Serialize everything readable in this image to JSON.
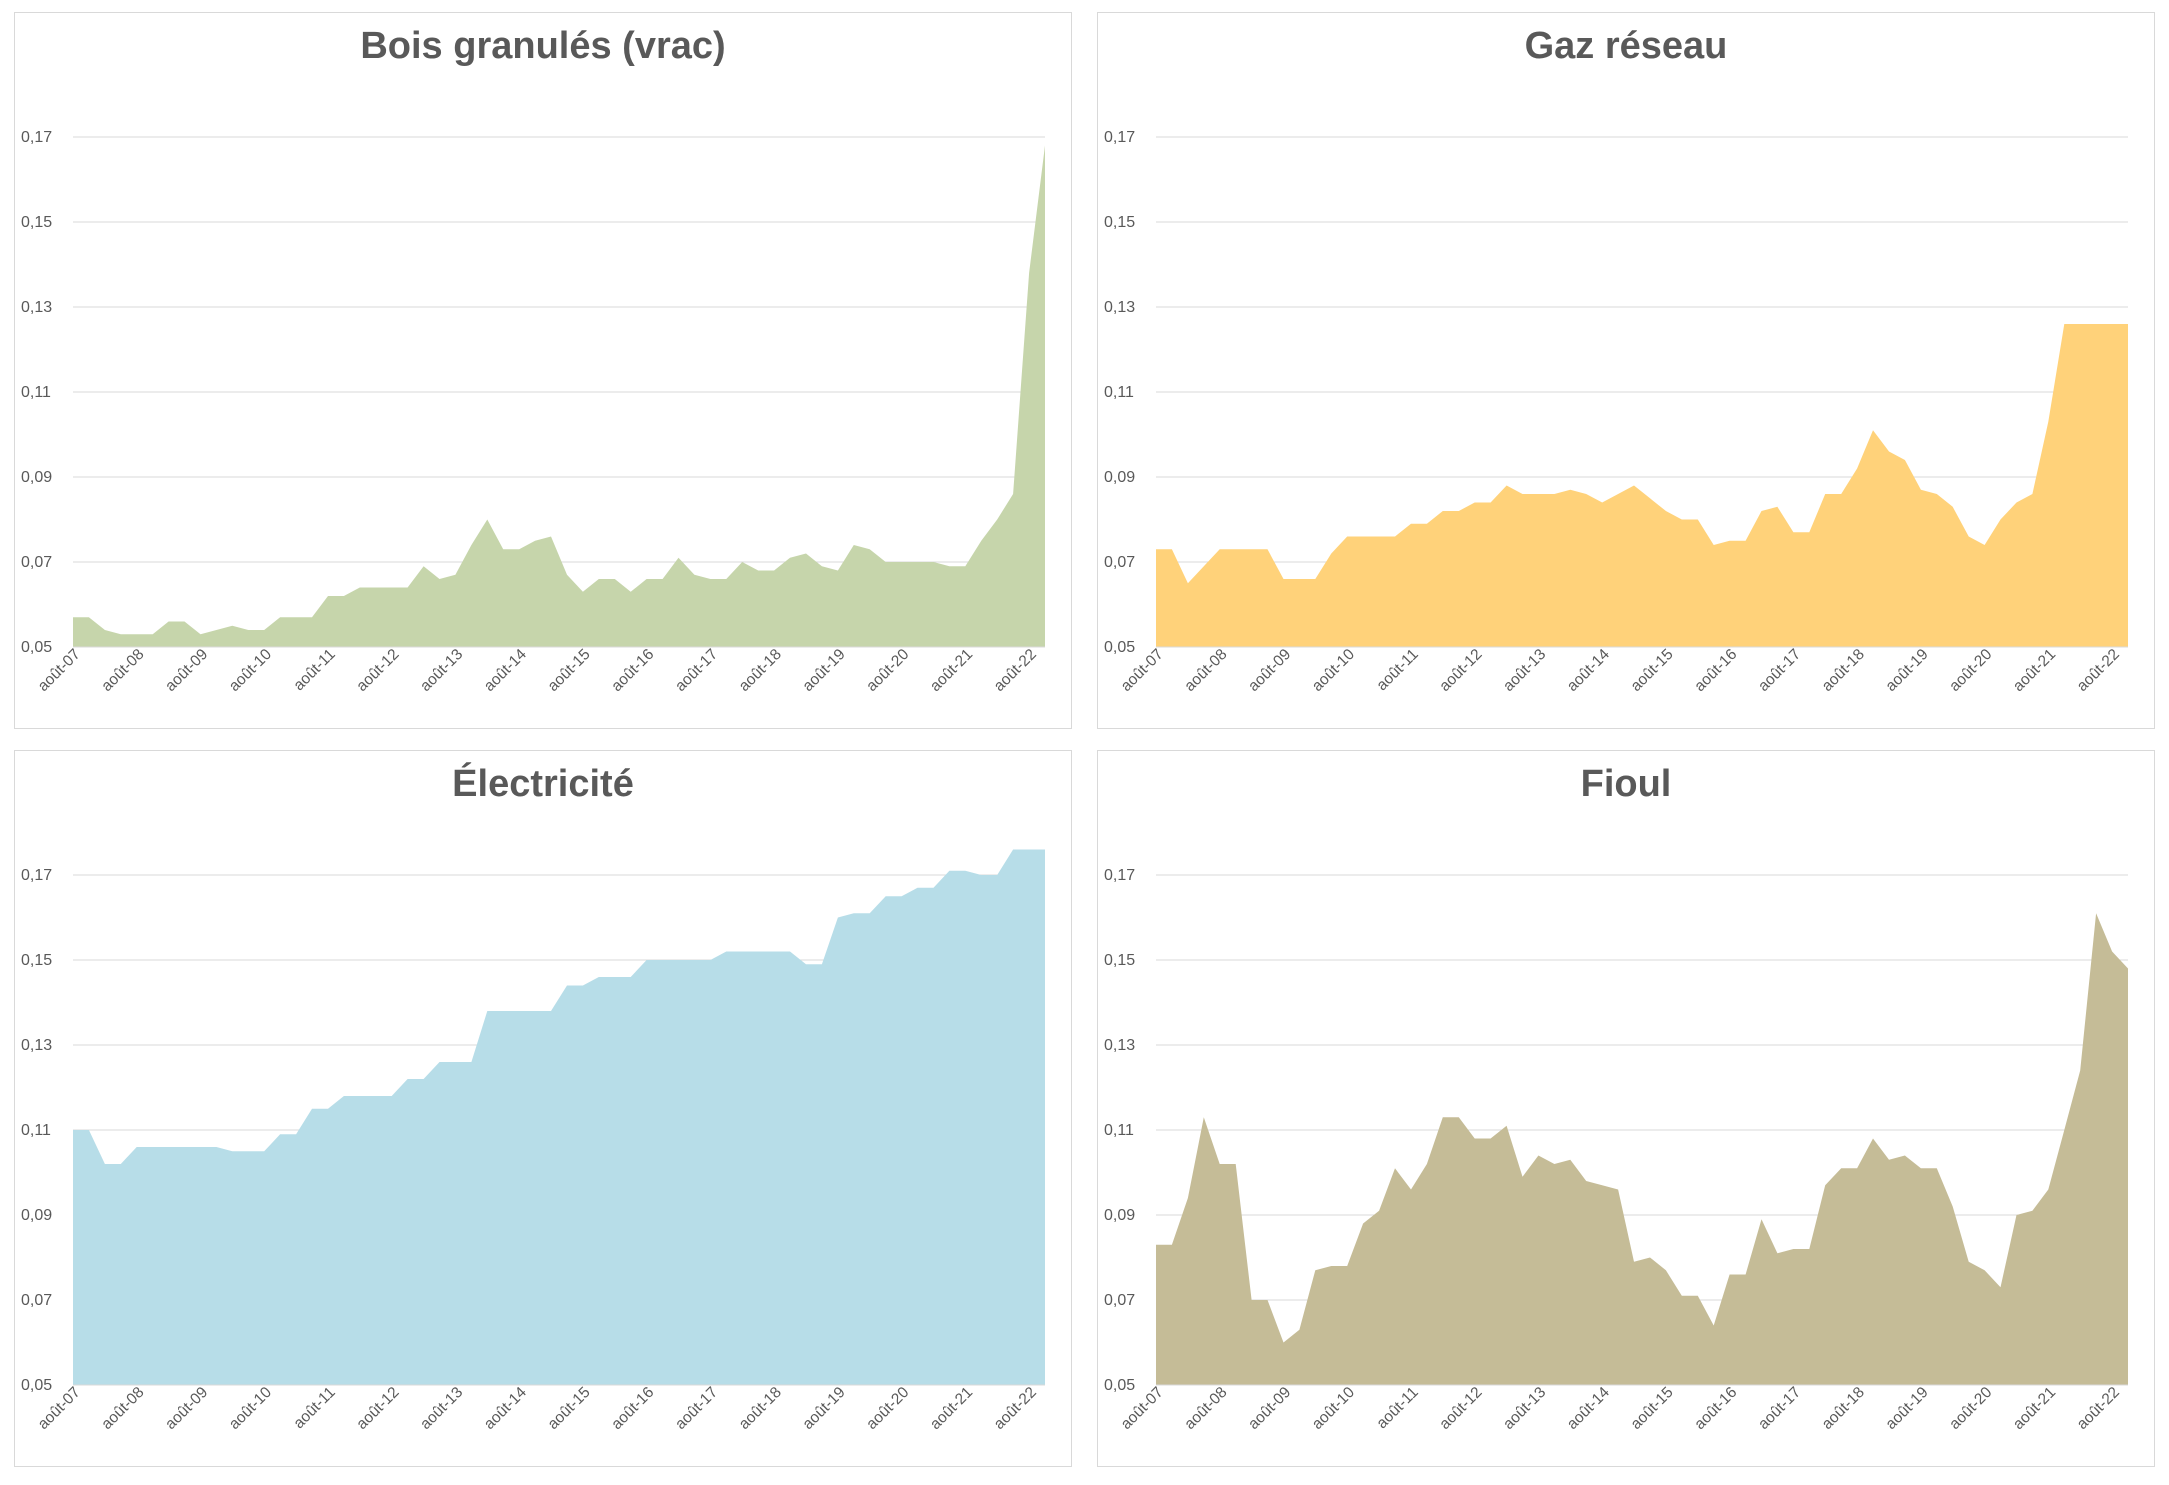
{
  "chart_data": [
    {
      "type": "area",
      "title": "Bois granulés (vrac)",
      "color": "#c6d5ab",
      "ylim": [
        0.05,
        0.17
      ],
      "yticks": [
        "0,05",
        "0,07",
        "0,09",
        "0,11",
        "0,13",
        "0,15",
        "0,17"
      ],
      "xticks": [
        "août-07",
        "août-08",
        "août-09",
        "août-10",
        "août-11",
        "août-12",
        "août-13",
        "août-14",
        "août-15",
        "août-16",
        "août-17",
        "août-18",
        "août-19",
        "août-20",
        "août-21",
        "août-22"
      ],
      "grid": true,
      "x": [
        2007.58,
        2007.83,
        2008.08,
        2008.33,
        2008.58,
        2008.83,
        2009.08,
        2009.33,
        2009.58,
        2009.83,
        2010.08,
        2010.33,
        2010.58,
        2010.83,
        2011.08,
        2011.33,
        2011.58,
        2011.83,
        2012.08,
        2012.33,
        2012.58,
        2012.83,
        2013.08,
        2013.33,
        2013.58,
        2013.83,
        2014.08,
        2014.33,
        2014.58,
        2014.83,
        2015.08,
        2015.33,
        2015.58,
        2015.83,
        2016.08,
        2016.33,
        2016.58,
        2016.83,
        2017.08,
        2017.33,
        2017.58,
        2017.83,
        2018.08,
        2018.33,
        2018.58,
        2018.83,
        2019.08,
        2019.33,
        2019.58,
        2019.83,
        2020.08,
        2020.33,
        2020.58,
        2020.83,
        2021.08,
        2021.33,
        2021.58,
        2021.83,
        2022.08,
        2022.33,
        2022.58,
        2022.83
      ],
      "y": [
        0.057,
        0.057,
        0.054,
        0.053,
        0.053,
        0.053,
        0.056,
        0.056,
        0.053,
        0.054,
        0.055,
        0.054,
        0.054,
        0.057,
        0.057,
        0.057,
        0.062,
        0.062,
        0.064,
        0.064,
        0.064,
        0.064,
        0.069,
        0.066,
        0.067,
        0.074,
        0.08,
        0.073,
        0.073,
        0.075,
        0.076,
        0.067,
        0.063,
        0.066,
        0.066,
        0.063,
        0.066,
        0.066,
        0.071,
        0.067,
        0.066,
        0.066,
        0.07,
        0.068,
        0.068,
        0.071,
        0.072,
        0.069,
        0.068,
        0.074,
        0.073,
        0.07,
        0.07,
        0.07,
        0.07,
        0.069,
        0.069,
        0.075,
        0.08,
        0.086,
        0.138,
        0.168
      ]
    },
    {
      "type": "area",
      "title": "Gaz réseau",
      "color": "#ffd27a",
      "ylim": [
        0.05,
        0.17
      ],
      "yticks": [
        "0,05",
        "0,07",
        "0,09",
        "0,11",
        "0,13",
        "0,15",
        "0,17"
      ],
      "xticks": [
        "août-07",
        "août-08",
        "août-09",
        "août-10",
        "août-11",
        "août-12",
        "août-13",
        "août-14",
        "août-15",
        "août-16",
        "août-17",
        "août-18",
        "août-19",
        "août-20",
        "août-21",
        "août-22"
      ],
      "grid": true,
      "x": [
        2007.58,
        2007.83,
        2008.08,
        2008.33,
        2008.58,
        2008.83,
        2009.08,
        2009.33,
        2009.58,
        2009.83,
        2010.08,
        2010.33,
        2010.58,
        2010.83,
        2011.08,
        2011.33,
        2011.58,
        2011.83,
        2012.08,
        2012.33,
        2012.58,
        2012.83,
        2013.08,
        2013.33,
        2013.58,
        2013.83,
        2014.08,
        2014.33,
        2014.58,
        2014.83,
        2015.08,
        2015.33,
        2015.58,
        2015.83,
        2016.08,
        2016.33,
        2016.58,
        2016.83,
        2017.08,
        2017.33,
        2017.58,
        2017.83,
        2018.08,
        2018.33,
        2018.58,
        2018.83,
        2019.08,
        2019.33,
        2019.58,
        2019.83,
        2020.08,
        2020.33,
        2020.58,
        2020.83,
        2021.08,
        2021.33,
        2021.58,
        2021.83,
        2022.08,
        2022.33,
        2022.58,
        2022.83
      ],
      "y": [
        0.073,
        0.073,
        0.065,
        0.069,
        0.073,
        0.073,
        0.073,
        0.073,
        0.066,
        0.066,
        0.066,
        0.072,
        0.076,
        0.076,
        0.076,
        0.076,
        0.079,
        0.079,
        0.082,
        0.082,
        0.084,
        0.084,
        0.088,
        0.086,
        0.086,
        0.086,
        0.087,
        0.086,
        0.084,
        0.086,
        0.088,
        0.085,
        0.082,
        0.08,
        0.08,
        0.074,
        0.075,
        0.075,
        0.082,
        0.083,
        0.077,
        0.077,
        0.086,
        0.086,
        0.092,
        0.101,
        0.096,
        0.094,
        0.087,
        0.086,
        0.083,
        0.076,
        0.074,
        0.08,
        0.084,
        0.086,
        0.103,
        0.126,
        0.126,
        0.126,
        0.126,
        0.126
      ]
    },
    {
      "type": "area",
      "title": "Électricité",
      "color": "#b7dde8",
      "ylim": [
        0.05,
        0.17
      ],
      "yticks": [
        "0,05",
        "0,07",
        "0,09",
        "0,11",
        "0,13",
        "0,15",
        "0,17"
      ],
      "xticks": [
        "août-07",
        "août-08",
        "août-09",
        "août-10",
        "août-11",
        "août-12",
        "août-13",
        "août-14",
        "août-15",
        "août-16",
        "août-17",
        "août-18",
        "août-19",
        "août-20",
        "août-21",
        "août-22"
      ],
      "grid": true,
      "x": [
        2007.58,
        2007.83,
        2008.08,
        2008.33,
        2008.58,
        2008.83,
        2009.08,
        2009.33,
        2009.58,
        2009.83,
        2010.08,
        2010.33,
        2010.58,
        2010.83,
        2011.08,
        2011.33,
        2011.58,
        2011.83,
        2012.08,
        2012.33,
        2012.58,
        2012.83,
        2013.08,
        2013.33,
        2013.58,
        2013.83,
        2014.08,
        2014.33,
        2014.58,
        2014.83,
        2015.08,
        2015.33,
        2015.58,
        2015.83,
        2016.08,
        2016.33,
        2016.58,
        2016.83,
        2017.08,
        2017.33,
        2017.58,
        2017.83,
        2018.08,
        2018.33,
        2018.58,
        2018.83,
        2019.08,
        2019.33,
        2019.58,
        2019.83,
        2020.08,
        2020.33,
        2020.58,
        2020.83,
        2021.08,
        2021.33,
        2021.58,
        2021.83,
        2022.08,
        2022.33,
        2022.58,
        2022.83
      ],
      "y": [
        0.11,
        0.11,
        0.102,
        0.102,
        0.106,
        0.106,
        0.106,
        0.106,
        0.106,
        0.106,
        0.105,
        0.105,
        0.105,
        0.109,
        0.109,
        0.115,
        0.115,
        0.118,
        0.118,
        0.118,
        0.118,
        0.122,
        0.122,
        0.126,
        0.126,
        0.126,
        0.138,
        0.138,
        0.138,
        0.138,
        0.138,
        0.144,
        0.144,
        0.146,
        0.146,
        0.146,
        0.15,
        0.15,
        0.15,
        0.15,
        0.15,
        0.152,
        0.152,
        0.152,
        0.152,
        0.152,
        0.149,
        0.149,
        0.16,
        0.161,
        0.161,
        0.165,
        0.165,
        0.167,
        0.167,
        0.171,
        0.171,
        0.17,
        0.17,
        0.176,
        0.176,
        0.176
      ]
    },
    {
      "type": "area",
      "title": "Fioul",
      "color": "#c5bc97",
      "ylim": [
        0.05,
        0.17
      ],
      "yticks": [
        "0,05",
        "0,07",
        "0,09",
        "0,11",
        "0,13",
        "0,15",
        "0,17"
      ],
      "xticks": [
        "août-07",
        "août-08",
        "août-09",
        "août-10",
        "août-11",
        "août-12",
        "août-13",
        "août-14",
        "août-15",
        "août-16",
        "août-17",
        "août-18",
        "août-19",
        "août-20",
        "août-21",
        "août-22"
      ],
      "grid": true,
      "x": [
        2007.58,
        2007.83,
        2008.08,
        2008.33,
        2008.58,
        2008.83,
        2009.08,
        2009.33,
        2009.58,
        2009.83,
        2010.08,
        2010.33,
        2010.58,
        2010.83,
        2011.08,
        2011.33,
        2011.58,
        2011.83,
        2012.08,
        2012.33,
        2012.58,
        2012.83,
        2013.08,
        2013.33,
        2013.58,
        2013.83,
        2014.08,
        2014.33,
        2014.58,
        2014.83,
        2015.08,
        2015.33,
        2015.58,
        2015.83,
        2016.08,
        2016.33,
        2016.58,
        2016.83,
        2017.08,
        2017.33,
        2017.58,
        2017.83,
        2018.08,
        2018.33,
        2018.58,
        2018.83,
        2019.08,
        2019.33,
        2019.58,
        2019.83,
        2020.08,
        2020.33,
        2020.58,
        2020.83,
        2021.08,
        2021.33,
        2021.58,
        2021.83,
        2022.08,
        2022.33,
        2022.58,
        2022.83
      ],
      "y": [
        0.083,
        0.083,
        0.094,
        0.113,
        0.102,
        0.102,
        0.07,
        0.07,
        0.06,
        0.063,
        0.077,
        0.078,
        0.078,
        0.088,
        0.091,
        0.101,
        0.096,
        0.102,
        0.113,
        0.113,
        0.108,
        0.108,
        0.111,
        0.099,
        0.104,
        0.102,
        0.103,
        0.098,
        0.097,
        0.096,
        0.079,
        0.08,
        0.077,
        0.071,
        0.071,
        0.064,
        0.076,
        0.076,
        0.089,
        0.081,
        0.082,
        0.082,
        0.097,
        0.101,
        0.101,
        0.108,
        0.103,
        0.104,
        0.101,
        0.101,
        0.092,
        0.079,
        0.077,
        0.073,
        0.09,
        0.091,
        0.096,
        0.11,
        0.124,
        0.161,
        0.152,
        0.148
      ]
    }
  ]
}
